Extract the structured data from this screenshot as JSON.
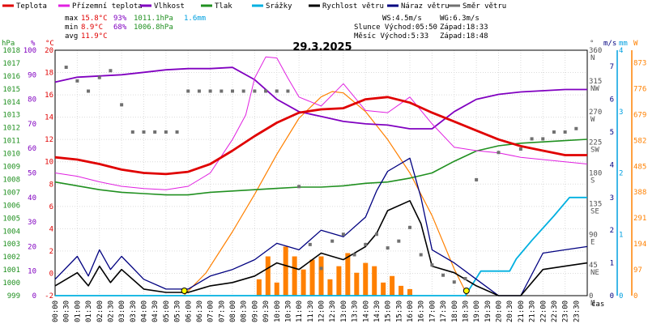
{
  "chart_data": {
    "type": "line",
    "title": "29.3.2025",
    "legend": [
      {
        "label": "Teplota",
        "color": "#e00000"
      },
      {
        "label": "Přízemní teplota",
        "color": "#e020e0"
      },
      {
        "label": "Vlhkost",
        "color": "#8000c0"
      },
      {
        "label": "Tlak",
        "color": "#209020"
      },
      {
        "label": "Srážky",
        "color": "#00b0e0"
      },
      {
        "label": "Rychlost větru",
        "color": "#000000"
      },
      {
        "label": "Náraz větru",
        "color": "#000080"
      },
      {
        "label": "Směr větru",
        "color": "#707070"
      }
    ],
    "stats": [
      {
        "label": "max",
        "temp": "15.8°C",
        "hum": "93%",
        "press": "1011.1hPa",
        "rain": "1.6mm"
      },
      {
        "label": "min",
        "temp": "8.9°C",
        "hum": "68%",
        "press": "1006.8hPa",
        "rain": ""
      },
      {
        "label": "avg",
        "temp": "11.9°C",
        "hum": "",
        "press": "",
        "rain": ""
      }
    ],
    "wind_info": {
      "ws": "WS:4.5m/s",
      "wg": "WG:6.3m/s"
    },
    "sun_info": {
      "rise": "Slunce Východ:05:50",
      "set": "Západ:18:33"
    },
    "moon_info": {
      "rise": "Měsíc  Východ:5:33",
      "set": "Západ:18:48"
    },
    "axes": {
      "pressure": {
        "unit": "hPa",
        "ticks": [
          "999",
          "1000",
          "1001",
          "1002",
          "1003",
          "1004",
          "1005",
          "1006",
          "1007",
          "1008",
          "1009",
          "1010",
          "1011",
          "1012",
          "1013",
          "1014",
          "1015",
          "1016",
          "1017",
          "1018"
        ]
      },
      "humidity": {
        "unit": "%",
        "ticks": [
          "0",
          "10",
          "20",
          "30",
          "40",
          "50",
          "60",
          "70",
          "80",
          "90",
          "100"
        ]
      },
      "temperature": {
        "unit": "°C",
        "ticks": [
          "-2",
          "0",
          "2",
          "4",
          "6",
          "8",
          "10",
          "12",
          "14",
          "16",
          "18",
          "20"
        ]
      },
      "direction": {
        "unit": "°",
        "ticks": [
          {
            "v": "0",
            "d": "N"
          },
          {
            "v": "45",
            "d": "NE"
          },
          {
            "v": "90",
            "d": "E"
          },
          {
            "v": "135",
            "d": "SE"
          },
          {
            "v": "180",
            "d": "S"
          },
          {
            "v": "225",
            "d": "SW"
          },
          {
            "v": "270",
            "d": "W"
          },
          {
            "v": "315",
            "d": "NW"
          },
          {
            "v": "360",
            "d": "N"
          }
        ]
      },
      "wind": {
        "unit": "m/s",
        "ticks": [
          "0",
          "1",
          "2",
          "3",
          "4",
          "5",
          "6",
          "7"
        ]
      },
      "rain": {
        "unit": "mm",
        "ticks": [
          "0",
          "1",
          "2",
          "3",
          "4"
        ]
      },
      "solar": {
        "unit": "W",
        "ticks": [
          "0",
          "97",
          "194",
          "291",
          "388",
          "485",
          "582",
          "679",
          "776",
          "873"
        ]
      },
      "x_label": "čas",
      "x_ticks": [
        "00:00",
        "00:30",
        "01:00",
        "01:30",
        "02:00",
        "02:30",
        "03:00",
        "03:30",
        "04:00",
        "04:30",
        "05:00",
        "05:30",
        "06:00",
        "06:30",
        "07:00",
        "07:30",
        "08:00",
        "08:30",
        "09:00",
        "09:30",
        "10:00",
        "10:30",
        "11:00",
        "11:30",
        "12:00",
        "12:30",
        "13:00",
        "13:30",
        "14:00",
        "14:30",
        "15:00",
        "15:30",
        "16:00",
        "16:30",
        "17:00",
        "17:30",
        "18:00",
        "18:30",
        "19:00",
        "19:30",
        "20:00",
        "20:30",
        "21:00",
        "21:30",
        "22:00",
        "22:30",
        "23:00",
        "23:30"
      ]
    },
    "series": {
      "temperature": [
        [
          0,
          10.4
        ],
        [
          1,
          10.2
        ],
        [
          2,
          9.8
        ],
        [
          3,
          9.3
        ],
        [
          4,
          9.0
        ],
        [
          5,
          8.9
        ],
        [
          6,
          9.1
        ],
        [
          7,
          9.8
        ],
        [
          8,
          11.0
        ],
        [
          9,
          12.3
        ],
        [
          10,
          13.5
        ],
        [
          11,
          14.4
        ],
        [
          12,
          14.7
        ],
        [
          13,
          14.8
        ],
        [
          14,
          15.6
        ],
        [
          15,
          15.8
        ],
        [
          16,
          15.3
        ],
        [
          17,
          14.4
        ],
        [
          18,
          13.6
        ],
        [
          19,
          12.8
        ],
        [
          20,
          12.0
        ],
        [
          21,
          11.4
        ],
        [
          22,
          11.0
        ],
        [
          23,
          10.6
        ],
        [
          24,
          10.6
        ]
      ],
      "ground_temperature": [
        [
          0,
          9.0
        ],
        [
          1,
          8.7
        ],
        [
          2,
          8.2
        ],
        [
          3,
          7.8
        ],
        [
          4,
          7.6
        ],
        [
          5,
          7.5
        ],
        [
          6,
          7.8
        ],
        [
          7,
          9.0
        ],
        [
          8,
          12.0
        ],
        [
          8.6,
          14.2
        ],
        [
          9,
          17.5
        ],
        [
          9.5,
          19.4
        ],
        [
          10,
          19.3
        ],
        [
          10.5,
          17.5
        ],
        [
          11,
          15.8
        ],
        [
          12,
          15.0
        ],
        [
          13,
          17.0
        ],
        [
          14,
          14.6
        ],
        [
          15,
          14.4
        ],
        [
          16,
          15.8
        ],
        [
          17,
          13.4
        ],
        [
          18,
          11.3
        ],
        [
          19,
          11.0
        ],
        [
          20,
          10.8
        ],
        [
          21,
          10.4
        ],
        [
          22,
          10.2
        ],
        [
          23,
          10.0
        ],
        [
          24,
          9.8
        ]
      ],
      "humidity": [
        [
          0,
          87
        ],
        [
          1,
          89
        ],
        [
          2,
          89.5
        ],
        [
          3,
          90
        ],
        [
          4,
          91
        ],
        [
          5,
          92
        ],
        [
          6,
          92.5
        ],
        [
          7,
          92.5
        ],
        [
          8,
          93
        ],
        [
          9,
          88
        ],
        [
          10,
          80
        ],
        [
          11,
          75
        ],
        [
          12,
          73
        ],
        [
          13,
          71
        ],
        [
          14,
          70
        ],
        [
          15,
          69.5
        ],
        [
          16,
          68
        ],
        [
          17,
          68
        ],
        [
          18,
          75
        ],
        [
          19,
          80
        ],
        [
          20,
          82
        ],
        [
          21,
          83
        ],
        [
          22,
          83.5
        ],
        [
          23,
          84
        ],
        [
          24,
          84
        ]
      ],
      "pressure": [
        [
          0,
          1007.8
        ],
        [
          1,
          1007.5
        ],
        [
          2,
          1007.2
        ],
        [
          3,
          1007.0
        ],
        [
          4,
          1006.9
        ],
        [
          5,
          1006.8
        ],
        [
          6,
          1006.8
        ],
        [
          7,
          1007.0
        ],
        [
          8,
          1007.1
        ],
        [
          9,
          1007.2
        ],
        [
          10,
          1007.3
        ],
        [
          11,
          1007.4
        ],
        [
          12,
          1007.4
        ],
        [
          13,
          1007.5
        ],
        [
          14,
          1007.7
        ],
        [
          15,
          1007.8
        ],
        [
          16,
          1008.1
        ],
        [
          17,
          1008.5
        ],
        [
          18,
          1009.4
        ],
        [
          19,
          1010.2
        ],
        [
          20,
          1010.6
        ],
        [
          21,
          1010.8
        ],
        [
          22,
          1010.9
        ],
        [
          23,
          1011.0
        ],
        [
          24,
          1011.1
        ]
      ],
      "rain": [
        [
          0,
          0.0
        ],
        [
          18.5,
          0.0
        ],
        [
          19.2,
          0.4
        ],
        [
          20.5,
          0.4
        ],
        [
          20.8,
          0.6
        ],
        [
          21.5,
          0.9
        ],
        [
          22.5,
          1.3
        ],
        [
          23.2,
          1.6
        ],
        [
          24,
          1.6
        ]
      ],
      "solar": [
        [
          5.8,
          0
        ],
        [
          6.8,
          85
        ],
        [
          8,
          240
        ],
        [
          9,
          380
        ],
        [
          10,
          530
        ],
        [
          11,
          665
        ],
        [
          12,
          745
        ],
        [
          12.5,
          765
        ],
        [
          13,
          760
        ],
        [
          14,
          690
        ],
        [
          15,
          585
        ],
        [
          16,
          460
        ],
        [
          17,
          300
        ],
        [
          18,
          100
        ],
        [
          18.6,
          0
        ]
      ],
      "wind_speed": [
        [
          0,
          0.3
        ],
        [
          1,
          0.7
        ],
        [
          1.5,
          0.3
        ],
        [
          2,
          0.9
        ],
        [
          2.5,
          0.4
        ],
        [
          3,
          0.8
        ],
        [
          4,
          0.2
        ],
        [
          5,
          0.1
        ],
        [
          6,
          0.1
        ],
        [
          7,
          0.3
        ],
        [
          8,
          0.4
        ],
        [
          9,
          0.6
        ],
        [
          10,
          1.0
        ],
        [
          11,
          0.8
        ],
        [
          12,
          1.3
        ],
        [
          13,
          1.1
        ],
        [
          14,
          1.5
        ],
        [
          14.5,
          1.9
        ],
        [
          15,
          2.6
        ],
        [
          16,
          2.9
        ],
        [
          16.5,
          2.2
        ],
        [
          17,
          0.9
        ],
        [
          18,
          0.7
        ],
        [
          19,
          0.3
        ],
        [
          20,
          0.0
        ],
        [
          21,
          0.0
        ],
        [
          22,
          0.8
        ],
        [
          23,
          0.9
        ],
        [
          24,
          1.0
        ]
      ],
      "wind_gust": [
        [
          0,
          0.5
        ],
        [
          1,
          1.2
        ],
        [
          1.5,
          0.6
        ],
        [
          2,
          1.4
        ],
        [
          2.5,
          0.8
        ],
        [
          3,
          1.2
        ],
        [
          4,
          0.5
        ],
        [
          5,
          0.2
        ],
        [
          6,
          0.2
        ],
        [
          7,
          0.6
        ],
        [
          8,
          0.8
        ],
        [
          9,
          1.1
        ],
        [
          10,
          1.6
        ],
        [
          11,
          1.4
        ],
        [
          12,
          2.0
        ],
        [
          13,
          1.8
        ],
        [
          14,
          2.4
        ],
        [
          14.5,
          3.2
        ],
        [
          15,
          3.8
        ],
        [
          16,
          4.2
        ],
        [
          16.5,
          3.0
        ],
        [
          17,
          1.4
        ],
        [
          18,
          1.0
        ],
        [
          19,
          0.5
        ],
        [
          20,
          0.0
        ],
        [
          21,
          0.0
        ],
        [
          22,
          1.3
        ],
        [
          23,
          1.4
        ],
        [
          24,
          1.5
        ]
      ],
      "wind_direction": [
        [
          0.5,
          335
        ],
        [
          1,
          315
        ],
        [
          1.5,
          300
        ],
        [
          2,
          320
        ],
        [
          2.5,
          330
        ],
        [
          3,
          280
        ],
        [
          3.5,
          240
        ],
        [
          4,
          240
        ],
        [
          4.5,
          240
        ],
        [
          5,
          240
        ],
        [
          5.5,
          240
        ],
        [
          6,
          300
        ],
        [
          6.5,
          300
        ],
        [
          7,
          300
        ],
        [
          7.5,
          300
        ],
        [
          8,
          300
        ],
        [
          8.5,
          300
        ],
        [
          9,
          300
        ],
        [
          9.5,
          300
        ],
        [
          10,
          300
        ],
        [
          10.5,
          300
        ],
        [
          11,
          160
        ],
        [
          11.5,
          75
        ],
        [
          12,
          40
        ],
        [
          12.5,
          80
        ],
        [
          13,
          90
        ],
        [
          13.5,
          60
        ],
        [
          14,
          75
        ],
        [
          14.5,
          90
        ],
        [
          15,
          70
        ],
        [
          15.5,
          80
        ],
        [
          16,
          100
        ],
        [
          16.5,
          60
        ],
        [
          17,
          45
        ],
        [
          17.5,
          30
        ],
        [
          18,
          20
        ],
        [
          18.5,
          25
        ],
        [
          19,
          170
        ],
        [
          20,
          210
        ],
        [
          21,
          215
        ],
        [
          21.5,
          230
        ],
        [
          22,
          230
        ],
        [
          22.5,
          240
        ],
        [
          23,
          240
        ],
        [
          23.5,
          245
        ]
      ],
      "bars": [
        [
          9.2,
          0.5
        ],
        [
          9.6,
          1.2
        ],
        [
          10,
          0.4
        ],
        [
          10.4,
          1.5
        ],
        [
          10.8,
          1.2
        ],
        [
          11.2,
          0.8
        ],
        [
          11.6,
          1.1
        ],
        [
          12,
          1.2
        ],
        [
          12.4,
          0.5
        ],
        [
          12.8,
          0.9
        ],
        [
          13.2,
          1.3
        ],
        [
          13.6,
          0.7
        ],
        [
          14,
          1.0
        ],
        [
          14.4,
          0.9
        ],
        [
          14.8,
          0.4
        ],
        [
          15.2,
          0.6
        ],
        [
          15.6,
          0.3
        ],
        [
          16,
          0.2
        ]
      ]
    },
    "sun_markers": {
      "sunrise": 5.83,
      "sunset": 18.55
    }
  }
}
